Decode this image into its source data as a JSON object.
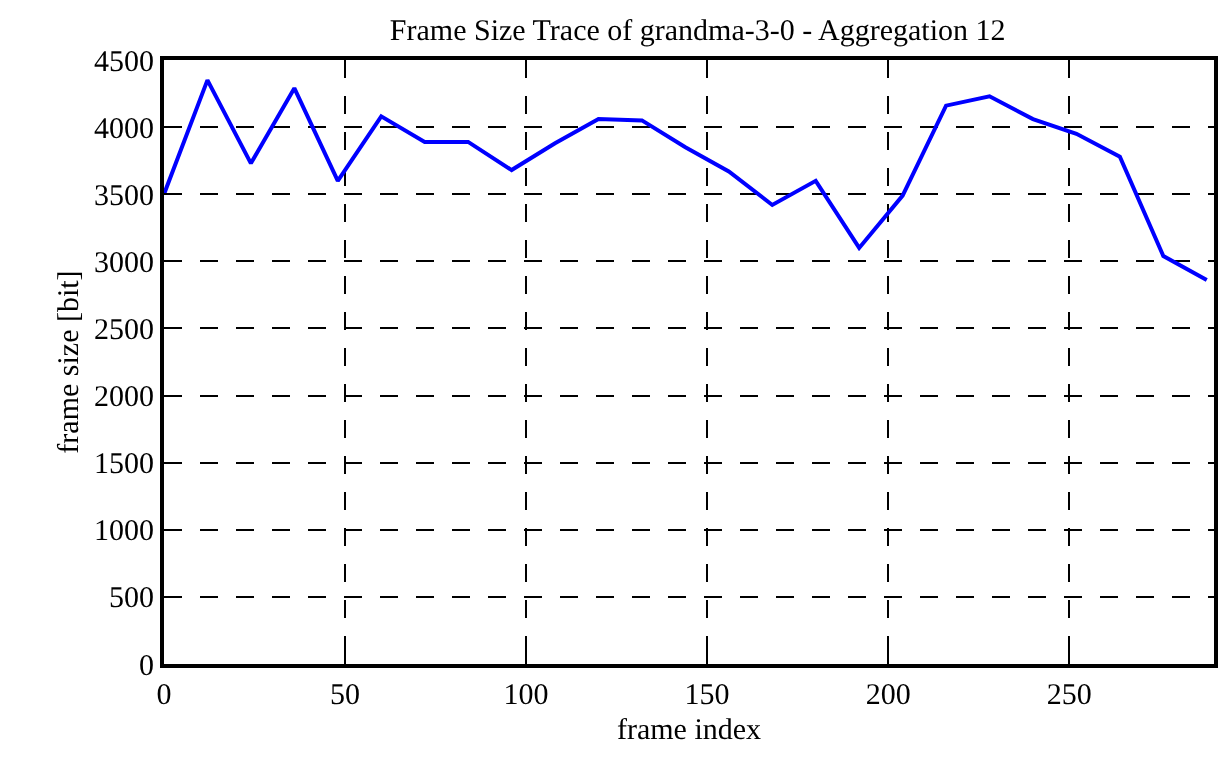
{
  "chart_data": {
    "type": "line",
    "title": "Frame Size Trace of grandma-3-0 - Aggregation 12",
    "xlabel": "frame index",
    "ylabel": "frame size [bit]",
    "x": [
      0,
      12,
      24,
      36,
      48,
      60,
      72,
      84,
      96,
      108,
      120,
      132,
      144,
      156,
      168,
      180,
      192,
      204,
      216,
      228,
      240,
      252,
      264,
      276,
      288
    ],
    "series": [
      {
        "color": "#0000ff",
        "values": [
          3500,
          4350,
          3730,
          4290,
          3600,
          4080,
          3890,
          3890,
          3680,
          3880,
          4060,
          4050,
          3850,
          3670,
          3420,
          3600,
          3100,
          3490,
          4160,
          4230,
          4060,
          3950,
          3780,
          3040,
          2860
        ]
      }
    ],
    "xlim": [
      0,
      290
    ],
    "xticks": [
      0,
      50,
      100,
      150,
      200,
      250
    ],
    "ylim": [
      0,
      4500
    ],
    "yticks": [
      0,
      500,
      1000,
      1500,
      2000,
      2500,
      3000,
      3500,
      4000,
      4500
    ],
    "grid": true,
    "legend": false,
    "marker": "none",
    "line_style": "solid"
  }
}
